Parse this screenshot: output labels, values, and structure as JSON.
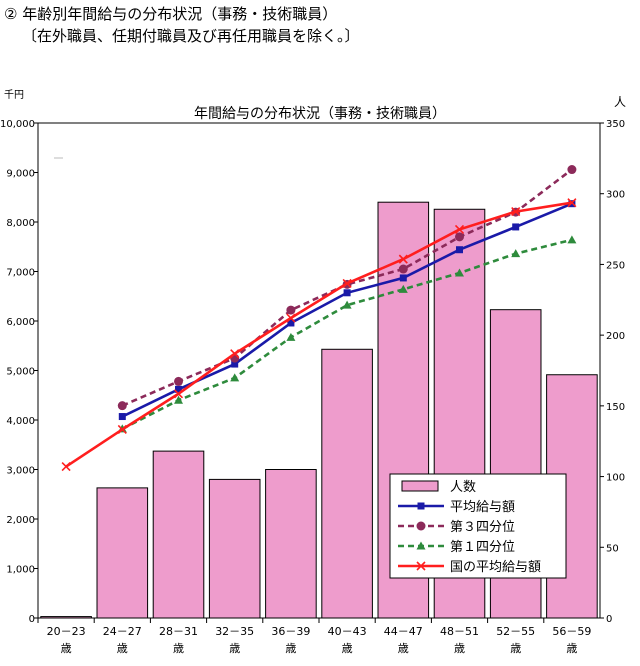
{
  "page": {
    "heading": "② 年齢別年間給与の分布状況（事務・技術職員）",
    "subheading": "〔在外職員、任期付職員及び再任用職員を除く。〕"
  },
  "chart_data": {
    "type": "bar+line",
    "title": "年間給与の分布状況（事務・技術職員）",
    "left_axis_unit": "千円",
    "right_axis_unit": "人",
    "left_ylim": [
      0,
      10000
    ],
    "right_ylim": [
      0,
      350
    ],
    "left_ticks": [
      "0",
      "1,000",
      "2,000",
      "3,000",
      "4,000",
      "5,000",
      "6,000",
      "7,000",
      "8,000",
      "9,000",
      "10,000"
    ],
    "right_ticks": [
      "0",
      "50",
      "100",
      "150",
      "200",
      "250",
      "300",
      "350"
    ],
    "categories": [
      "20－23",
      "24－27",
      "28－31",
      "32－35",
      "36－39",
      "40－43",
      "44－47",
      "48－51",
      "52－55",
      "56－59"
    ],
    "category_suffix": "歳",
    "grid": "none",
    "legend_position": "bottom-right",
    "bars": {
      "name": "人数",
      "axis": "right",
      "color": "#ee9ccc",
      "values": [
        1,
        92,
        118,
        98,
        105,
        190,
        294,
        289,
        218,
        172
      ]
    },
    "series": [
      {
        "name": "平均給与額",
        "axis": "left",
        "color": "#1a1aa8",
        "dash": "solid",
        "marker": "square",
        "values": [
          null,
          4070,
          4620,
          5130,
          5960,
          6570,
          6870,
          7440,
          7900,
          8370
        ]
      },
      {
        "name": "第３四分位",
        "axis": "left",
        "color": "#8c2a5a",
        "dash": "dashed",
        "marker": "circle",
        "values": [
          null,
          4290,
          4780,
          5250,
          6220,
          6740,
          7050,
          7700,
          8200,
          9060
        ]
      },
      {
        "name": "第１四分位",
        "axis": "left",
        "color": "#2e8b3c",
        "dash": "dashed",
        "marker": "triangle",
        "values": [
          null,
          3820,
          4400,
          4850,
          5670,
          6320,
          6640,
          6970,
          7360,
          7640
        ]
      },
      {
        "name": "国の平均給与額",
        "axis": "left",
        "color": "#ff1e1e",
        "dash": "solid",
        "marker": "x",
        "values": [
          3060,
          3810,
          4530,
          5340,
          6060,
          6760,
          7250,
          7850,
          8210,
          8390
        ]
      }
    ]
  }
}
